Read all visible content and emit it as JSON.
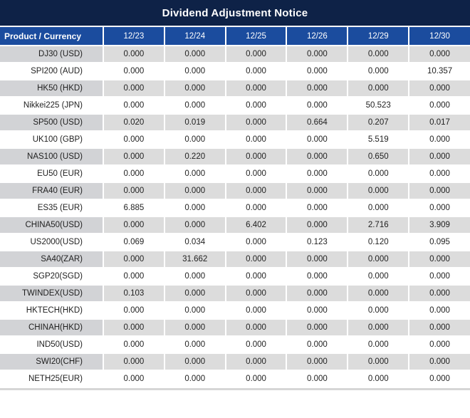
{
  "title": "Dividend Adjustment Notice",
  "colors": {
    "title_bg": "#0e2247",
    "header_bg": "#1b4c9e",
    "row_gray": "#dcdcdc",
    "product_gray": "#d2d3d6",
    "highlight_red": "#e8231e",
    "value_text": "#1f1f1f"
  },
  "chart_data": {
    "type": "table",
    "title": "Dividend Adjustment Notice",
    "product_header": "Product / Currency",
    "date_headers": [
      "12/23",
      "12/24",
      "12/25",
      "12/26",
      "12/29",
      "12/30"
    ],
    "rows": [
      {
        "product": "DJ30 (USD)",
        "values": [
          "0.000",
          "0.000",
          "0.000",
          "0.000",
          "0.000",
          "0.000"
        ],
        "red_indices": []
      },
      {
        "product": "SPI200 (AUD)",
        "values": [
          "0.000",
          "0.000",
          "0.000",
          "0.000",
          "0.000",
          "10.357"
        ],
        "red_indices": [
          5
        ]
      },
      {
        "product": "HK50 (HKD)",
        "values": [
          "0.000",
          "0.000",
          "0.000",
          "0.000",
          "0.000",
          "0.000"
        ],
        "red_indices": []
      },
      {
        "product": "Nikkei225 (JPN)",
        "values": [
          "0.000",
          "0.000",
          "0.000",
          "0.000",
          "50.523",
          "0.000"
        ],
        "red_indices": [
          4
        ]
      },
      {
        "product": "SP500 (USD)",
        "values": [
          "0.020",
          "0.019",
          "0.000",
          "0.664",
          "0.207",
          "0.017"
        ],
        "red_indices": [
          0,
          1,
          3,
          4,
          5
        ]
      },
      {
        "product": "UK100 (GBP)",
        "values": [
          "0.000",
          "0.000",
          "0.000",
          "0.000",
          "5.519",
          "0.000"
        ],
        "red_indices": [
          4
        ]
      },
      {
        "product": "NAS100 (USD)",
        "values": [
          "0.000",
          "0.220",
          "0.000",
          "0.000",
          "0.650",
          "0.000"
        ],
        "red_indices": [
          1,
          4
        ]
      },
      {
        "product": "EU50 (EUR)",
        "values": [
          "0.000",
          "0.000",
          "0.000",
          "0.000",
          "0.000",
          "0.000"
        ],
        "red_indices": []
      },
      {
        "product": "FRA40 (EUR)",
        "values": [
          "0.000",
          "0.000",
          "0.000",
          "0.000",
          "0.000",
          "0.000"
        ],
        "red_indices": []
      },
      {
        "product": "ES35 (EUR)",
        "values": [
          "6.885",
          "0.000",
          "0.000",
          "0.000",
          "0.000",
          "0.000"
        ],
        "red_indices": [
          0
        ]
      },
      {
        "product": "CHINA50(USD)",
        "values": [
          "0.000",
          "0.000",
          "6.402",
          "0.000",
          "2.716",
          "3.909"
        ],
        "red_indices": [
          2,
          4,
          5
        ]
      },
      {
        "product": "US2000(USD)",
        "values": [
          "0.069",
          "0.034",
          "0.000",
          "0.123",
          "0.120",
          "0.095"
        ],
        "red_indices": [
          0,
          1,
          3,
          4,
          5
        ]
      },
      {
        "product": "SA40(ZAR)",
        "values": [
          "0.000",
          "31.662",
          "0.000",
          "0.000",
          "0.000",
          "0.000"
        ],
        "red_indices": [
          1
        ]
      },
      {
        "product": "SGP20(SGD)",
        "values": [
          "0.000",
          "0.000",
          "0.000",
          "0.000",
          "0.000",
          "0.000"
        ],
        "red_indices": []
      },
      {
        "product": "TWINDEX(USD)",
        "values": [
          "0.103",
          "0.000",
          "0.000",
          "0.000",
          "0.000",
          "0.000"
        ],
        "red_indices": [
          0
        ]
      },
      {
        "product": "HKTECH(HKD)",
        "values": [
          "0.000",
          "0.000",
          "0.000",
          "0.000",
          "0.000",
          "0.000"
        ],
        "red_indices": []
      },
      {
        "product": "CHINAH(HKD)",
        "values": [
          "0.000",
          "0.000",
          "0.000",
          "0.000",
          "0.000",
          "0.000"
        ],
        "red_indices": []
      },
      {
        "product": "IND50(USD)",
        "values": [
          "0.000",
          "0.000",
          "0.000",
          "0.000",
          "0.000",
          "0.000"
        ],
        "red_indices": []
      },
      {
        "product": "SWI20(CHF)",
        "values": [
          "0.000",
          "0.000",
          "0.000",
          "0.000",
          "0.000",
          "0.000"
        ],
        "red_indices": []
      },
      {
        "product": "NETH25(EUR)",
        "values": [
          "0.000",
          "0.000",
          "0.000",
          "0.000",
          "0.000",
          "0.000"
        ],
        "red_indices": []
      }
    ]
  }
}
